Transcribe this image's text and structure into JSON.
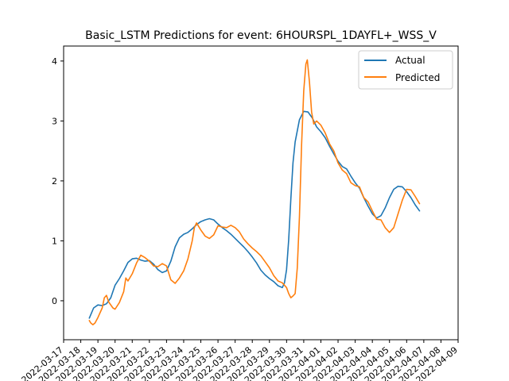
{
  "chart_data": {
    "type": "line",
    "title": "Basic_LSTM Predictions for event: 6HOURSPL_1DAYFL+_WSS_V",
    "xlabel": "",
    "ylabel": "",
    "xlim": [
      "2022-03-17T00:00",
      "2022-04-09T00:00"
    ],
    "ylim": [
      -0.65,
      4.25
    ],
    "yticks": [
      0,
      1,
      2,
      3,
      4
    ],
    "xtick_labels": [
      "2022-03-17",
      "2022-03-18",
      "2022-03-19",
      "2022-03-20",
      "2022-03-21",
      "2022-03-22",
      "2022-03-23",
      "2022-03-24",
      "2022-03-25",
      "2022-03-26",
      "2022-03-27",
      "2022-03-28",
      "2022-03-29",
      "2022-03-30",
      "2022-03-31",
      "2022-04-01",
      "2022-04-02",
      "2022-04-03",
      "2022-04-04",
      "2022-04-05",
      "2022-04-06",
      "2022-04-07",
      "2022-04-08",
      "2022-04-09"
    ],
    "legend": {
      "position": "top-right",
      "entries": [
        "Actual",
        "Predicted"
      ]
    },
    "grid": false,
    "series": [
      {
        "name": "Actual",
        "color": "#1f77b4",
        "points": [
          [
            "2022-03-18T12:00",
            -0.29
          ],
          [
            "2022-03-18T18:00",
            -0.12
          ],
          [
            "2022-03-19T00:00",
            -0.07
          ],
          [
            "2022-03-19T06:00",
            -0.08
          ],
          [
            "2022-03-19T12:00",
            -0.05
          ],
          [
            "2022-03-19T18:00",
            0.05
          ],
          [
            "2022-03-20T00:00",
            0.26
          ],
          [
            "2022-03-20T06:00",
            0.37
          ],
          [
            "2022-03-20T12:00",
            0.5
          ],
          [
            "2022-03-20T18:00",
            0.64
          ],
          [
            "2022-03-21T00:00",
            0.7
          ],
          [
            "2022-03-21T06:00",
            0.71
          ],
          [
            "2022-03-21T12:00",
            0.68
          ],
          [
            "2022-03-21T18:00",
            0.66
          ],
          [
            "2022-03-22T00:00",
            0.67
          ],
          [
            "2022-03-22T06:00",
            0.61
          ],
          [
            "2022-03-22T12:00",
            0.52
          ],
          [
            "2022-03-22T18:00",
            0.47
          ],
          [
            "2022-03-23T00:00",
            0.5
          ],
          [
            "2022-03-23T06:00",
            0.66
          ],
          [
            "2022-03-23T12:00",
            0.9
          ],
          [
            "2022-03-23T18:00",
            1.05
          ],
          [
            "2022-03-24T00:00",
            1.11
          ],
          [
            "2022-03-24T06:00",
            1.14
          ],
          [
            "2022-03-24T12:00",
            1.2
          ],
          [
            "2022-03-24T18:00",
            1.27
          ],
          [
            "2022-03-25T00:00",
            1.32
          ],
          [
            "2022-03-25T06:00",
            1.35
          ],
          [
            "2022-03-25T12:00",
            1.37
          ],
          [
            "2022-03-25T18:00",
            1.35
          ],
          [
            "2022-03-26T00:00",
            1.28
          ],
          [
            "2022-03-26T06:00",
            1.22
          ],
          [
            "2022-03-26T12:00",
            1.17
          ],
          [
            "2022-03-26T18:00",
            1.11
          ],
          [
            "2022-03-27T00:00",
            1.04
          ],
          [
            "2022-03-27T06:00",
            0.97
          ],
          [
            "2022-03-27T12:00",
            0.9
          ],
          [
            "2022-03-27T18:00",
            0.82
          ],
          [
            "2022-03-28T00:00",
            0.73
          ],
          [
            "2022-03-28T06:00",
            0.63
          ],
          [
            "2022-03-28T12:00",
            0.51
          ],
          [
            "2022-03-28T18:00",
            0.43
          ],
          [
            "2022-03-29T00:00",
            0.37
          ],
          [
            "2022-03-29T06:00",
            0.32
          ],
          [
            "2022-03-29T12:00",
            0.25
          ],
          [
            "2022-03-29T18:00",
            0.22
          ],
          [
            "2022-03-29T21:00",
            0.3
          ],
          [
            "2022-03-30T00:00",
            0.52
          ],
          [
            "2022-03-30T03:00",
            1.02
          ],
          [
            "2022-03-30T06:00",
            1.7
          ],
          [
            "2022-03-30T09:00",
            2.3
          ],
          [
            "2022-03-30T12:00",
            2.65
          ],
          [
            "2022-03-30T18:00",
            3.02
          ],
          [
            "2022-03-31T00:00",
            3.16
          ],
          [
            "2022-03-31T06:00",
            3.15
          ],
          [
            "2022-03-31T12:00",
            3.05
          ],
          [
            "2022-03-31T18:00",
            2.9
          ],
          [
            "2022-04-01T00:00",
            2.82
          ],
          [
            "2022-04-01T06:00",
            2.72
          ],
          [
            "2022-04-01T12:00",
            2.58
          ],
          [
            "2022-04-01T18:00",
            2.45
          ],
          [
            "2022-04-02T00:00",
            2.33
          ],
          [
            "2022-04-02T06:00",
            2.24
          ],
          [
            "2022-04-02T12:00",
            2.2
          ],
          [
            "2022-04-02T18:00",
            2.08
          ],
          [
            "2022-04-03T00:00",
            1.97
          ],
          [
            "2022-04-03T06:00",
            1.88
          ],
          [
            "2022-04-03T12:00",
            1.72
          ],
          [
            "2022-04-03T18:00",
            1.58
          ],
          [
            "2022-04-04T00:00",
            1.45
          ],
          [
            "2022-04-04T06:00",
            1.38
          ],
          [
            "2022-04-04T12:00",
            1.42
          ],
          [
            "2022-04-04T18:00",
            1.55
          ],
          [
            "2022-04-05T00:00",
            1.72
          ],
          [
            "2022-04-05T06:00",
            1.86
          ],
          [
            "2022-04-05T12:00",
            1.91
          ],
          [
            "2022-04-05T18:00",
            1.9
          ],
          [
            "2022-04-06T00:00",
            1.82
          ],
          [
            "2022-04-06T06:00",
            1.72
          ],
          [
            "2022-04-06T12:00",
            1.6
          ],
          [
            "2022-04-06T18:00",
            1.5
          ]
        ]
      },
      {
        "name": "Predicted",
        "color": "#ff7f0e",
        "points": [
          [
            "2022-03-18T12:00",
            -0.33
          ],
          [
            "2022-03-18T14:00",
            -0.37
          ],
          [
            "2022-03-18T17:00",
            -0.4
          ],
          [
            "2022-03-18T20:00",
            -0.37
          ],
          [
            "2022-03-19T00:00",
            -0.28
          ],
          [
            "2022-03-19T06:00",
            -0.12
          ],
          [
            "2022-03-19T09:00",
            0.05
          ],
          [
            "2022-03-19T12:00",
            0.09
          ],
          [
            "2022-03-19T15:00",
            -0.02
          ],
          [
            "2022-03-19T21:00",
            -0.12
          ],
          [
            "2022-03-20T00:00",
            -0.14
          ],
          [
            "2022-03-20T06:00",
            -0.03
          ],
          [
            "2022-03-20T12:00",
            0.15
          ],
          [
            "2022-03-20T15:00",
            0.38
          ],
          [
            "2022-03-20T18:00",
            0.33
          ],
          [
            "2022-03-21T00:00",
            0.45
          ],
          [
            "2022-03-21T06:00",
            0.63
          ],
          [
            "2022-03-21T12:00",
            0.76
          ],
          [
            "2022-03-21T18:00",
            0.72
          ],
          [
            "2022-03-22T00:00",
            0.66
          ],
          [
            "2022-03-22T06:00",
            0.58
          ],
          [
            "2022-03-22T12:00",
            0.57
          ],
          [
            "2022-03-22T18:00",
            0.62
          ],
          [
            "2022-03-23T00:00",
            0.58
          ],
          [
            "2022-03-23T06:00",
            0.35
          ],
          [
            "2022-03-23T12:00",
            0.29
          ],
          [
            "2022-03-23T18:00",
            0.38
          ],
          [
            "2022-03-24T00:00",
            0.5
          ],
          [
            "2022-03-24T06:00",
            0.7
          ],
          [
            "2022-03-24T12:00",
            1.0
          ],
          [
            "2022-03-24T15:00",
            1.22
          ],
          [
            "2022-03-24T18:00",
            1.3
          ],
          [
            "2022-03-25T00:00",
            1.18
          ],
          [
            "2022-03-25T06:00",
            1.08
          ],
          [
            "2022-03-25T12:00",
            1.04
          ],
          [
            "2022-03-25T18:00",
            1.1
          ],
          [
            "2022-03-26T00:00",
            1.25
          ],
          [
            "2022-03-26T06:00",
            1.23
          ],
          [
            "2022-03-26T12:00",
            1.22
          ],
          [
            "2022-03-26T18:00",
            1.26
          ],
          [
            "2022-03-27T00:00",
            1.22
          ],
          [
            "2022-03-27T06:00",
            1.15
          ],
          [
            "2022-03-27T12:00",
            1.03
          ],
          [
            "2022-03-27T18:00",
            0.95
          ],
          [
            "2022-03-28T00:00",
            0.88
          ],
          [
            "2022-03-28T06:00",
            0.82
          ],
          [
            "2022-03-28T12:00",
            0.75
          ],
          [
            "2022-03-28T18:00",
            0.65
          ],
          [
            "2022-03-29T00:00",
            0.55
          ],
          [
            "2022-03-29T06:00",
            0.42
          ],
          [
            "2022-03-29T12:00",
            0.33
          ],
          [
            "2022-03-29T18:00",
            0.3
          ],
          [
            "2022-03-30T00:00",
            0.22
          ],
          [
            "2022-03-30T03:00",
            0.12
          ],
          [
            "2022-03-30T06:00",
            0.05
          ],
          [
            "2022-03-30T09:00",
            0.08
          ],
          [
            "2022-03-30T12:00",
            0.12
          ],
          [
            "2022-03-30T15:00",
            0.55
          ],
          [
            "2022-03-30T18:00",
            1.4
          ],
          [
            "2022-03-30T21:00",
            2.6
          ],
          [
            "2022-03-31T00:00",
            3.5
          ],
          [
            "2022-03-31T03:00",
            3.95
          ],
          [
            "2022-03-31T05:00",
            4.02
          ],
          [
            "2022-03-31T08:00",
            3.65
          ],
          [
            "2022-03-31T11:00",
            3.15
          ],
          [
            "2022-03-31T14:00",
            2.95
          ],
          [
            "2022-03-31T18:00",
            3.0
          ],
          [
            "2022-04-01T00:00",
            2.93
          ],
          [
            "2022-04-01T06:00",
            2.8
          ],
          [
            "2022-04-01T12:00",
            2.62
          ],
          [
            "2022-04-01T18:00",
            2.5
          ],
          [
            "2022-04-02T00:00",
            2.3
          ],
          [
            "2022-04-02T06:00",
            2.18
          ],
          [
            "2022-04-02T12:00",
            2.12
          ],
          [
            "2022-04-02T18:00",
            1.97
          ],
          [
            "2022-04-03T00:00",
            1.92
          ],
          [
            "2022-04-03T06:00",
            1.9
          ],
          [
            "2022-04-03T12:00",
            1.72
          ],
          [
            "2022-04-03T18:00",
            1.65
          ],
          [
            "2022-04-04T00:00",
            1.5
          ],
          [
            "2022-04-04T06:00",
            1.36
          ],
          [
            "2022-04-04T12:00",
            1.35
          ],
          [
            "2022-04-04T18:00",
            1.22
          ],
          [
            "2022-04-05T00:00",
            1.14
          ],
          [
            "2022-04-05T06:00",
            1.22
          ],
          [
            "2022-04-05T12:00",
            1.45
          ],
          [
            "2022-04-05T18:00",
            1.68
          ],
          [
            "2022-04-06T00:00",
            1.86
          ],
          [
            "2022-04-06T06:00",
            1.85
          ],
          [
            "2022-04-06T12:00",
            1.74
          ],
          [
            "2022-04-06T18:00",
            1.62
          ]
        ]
      }
    ]
  }
}
